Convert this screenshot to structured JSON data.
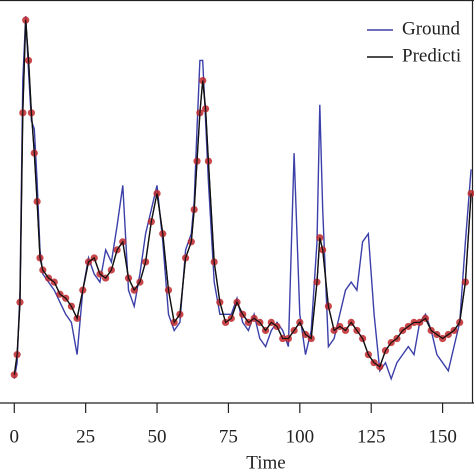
{
  "chart_data": {
    "type": "line",
    "xlabel": "Time",
    "x": [
      0,
      1,
      2,
      3,
      4,
      5,
      6,
      7,
      8,
      9,
      10,
      12,
      14,
      16,
      18,
      20,
      22,
      24,
      26,
      28,
      30,
      32,
      34,
      36,
      38,
      40,
      42,
      44,
      46,
      48,
      50,
      52,
      54,
      56,
      58,
      60,
      62,
      63,
      64,
      65,
      66,
      67,
      68,
      70,
      72,
      74,
      76,
      78,
      80,
      82,
      84,
      86,
      88,
      90,
      92,
      94,
      96,
      98,
      100,
      102,
      104,
      106,
      107,
      108,
      110,
      112,
      114,
      116,
      118,
      120,
      122,
      124,
      126,
      128,
      130,
      132,
      134,
      136,
      138,
      140,
      142,
      144,
      146,
      148,
      150,
      152,
      154,
      156,
      158,
      160
    ],
    "series": [
      {
        "name": "Ground",
        "color": "#3b3fa8",
        "values": [
          6,
          10,
          28,
          80,
          96,
          82,
          70,
          68,
          55,
          38,
          32,
          30,
          28,
          25,
          22,
          20,
          12,
          28,
          36,
          32,
          30,
          38,
          35,
          44,
          54,
          28,
          24,
          32,
          42,
          48,
          54,
          40,
          22,
          18,
          20,
          38,
          42,
          50,
          68,
          85,
          85,
          70,
          55,
          30,
          22,
          22,
          22,
          26,
          20,
          18,
          22,
          16,
          14,
          18,
          20,
          18,
          14,
          62,
          22,
          12,
          18,
          40,
          74,
          48,
          14,
          16,
          22,
          28,
          30,
          28,
          40,
          42,
          22,
          8,
          10,
          6,
          10,
          12,
          14,
          12,
          20,
          22,
          18,
          12,
          10,
          8,
          14,
          20,
          40,
          58
        ]
      },
      {
        "name": "Predicti",
        "color": "#111111",
        "marker_color": "#c0282d",
        "values": [
          7,
          12,
          25,
          72,
          95,
          85,
          72,
          62,
          50,
          36,
          33,
          31,
          30,
          27,
          26,
          24,
          21,
          28,
          35,
          36,
          32,
          31,
          33,
          38,
          40,
          31,
          28,
          30,
          35,
          45,
          52,
          42,
          28,
          20,
          22,
          36,
          40,
          48,
          60,
          72,
          80,
          73,
          60,
          35,
          25,
          20,
          21,
          25,
          22,
          20,
          21,
          20,
          18,
          20,
          19,
          16,
          16,
          18,
          20,
          17,
          16,
          30,
          41,
          38,
          24,
          18,
          19,
          18,
          20,
          18,
          16,
          12,
          10,
          9,
          13,
          15,
          16,
          18,
          19,
          20,
          20,
          21,
          18,
          17,
          16,
          17,
          18,
          20,
          30,
          52
        ]
      }
    ],
    "xlim": [
      -5,
      161
    ],
    "ylim": [
      0,
      100
    ],
    "xticks": [
      0,
      25,
      50,
      75,
      100,
      125,
      150
    ],
    "legend": "upper right"
  }
}
